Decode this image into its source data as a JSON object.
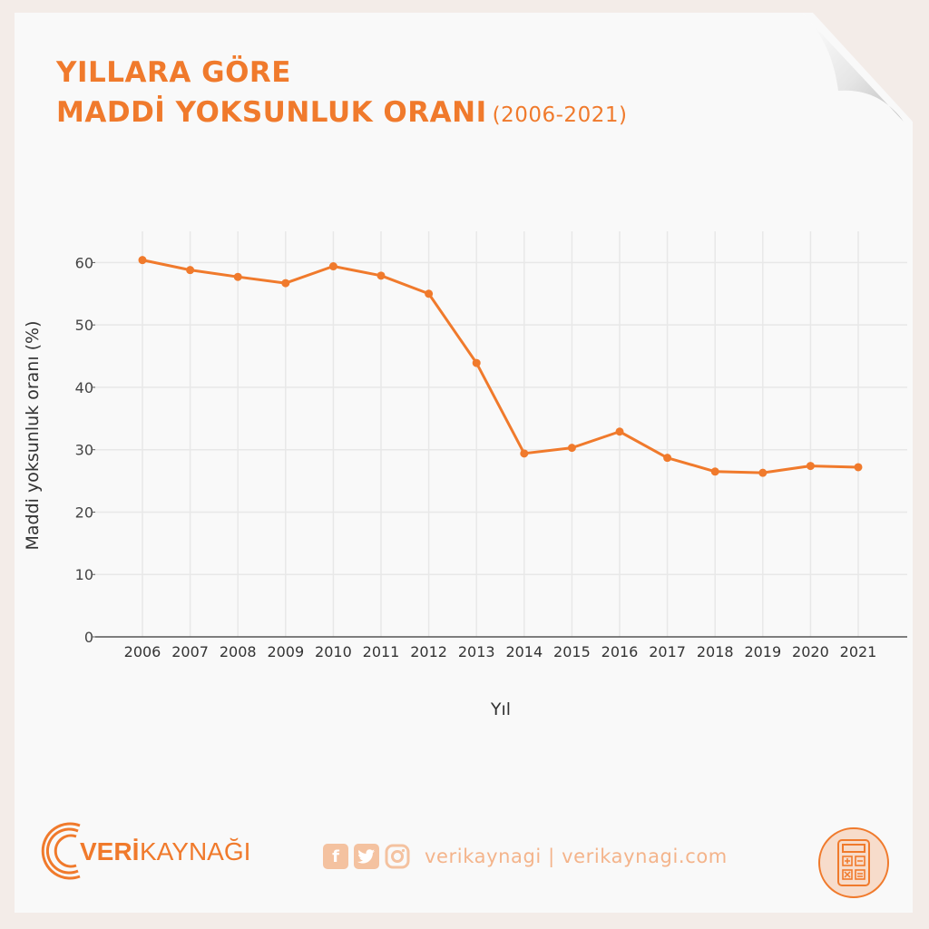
{
  "title": {
    "line1": "YILLARA GÖRE",
    "line2": "MADDİ YOKSUNLUK ORANI",
    "subtitle": "(2006-2021)"
  },
  "colors": {
    "accent": "#f07a2c",
    "grid": "#e8e8e8",
    "axis": "#555555",
    "soft_accent": "#f4c2a0"
  },
  "chart_data": {
    "type": "line",
    "x": [
      "2006",
      "2007",
      "2008",
      "2009",
      "2010",
      "2011",
      "2012",
      "2013",
      "2014",
      "2015",
      "2016",
      "2017",
      "2018",
      "2019",
      "2020",
      "2021"
    ],
    "series": [
      {
        "values": [
          60.4,
          58.8,
          57.7,
          56.7,
          59.4,
          57.9,
          55.0,
          43.9,
          29.4,
          30.3,
          32.9,
          28.7,
          26.5,
          26.3,
          27.4,
          27.2
        ]
      }
    ],
    "ylim": [
      0,
      65
    ],
    "yticks": [
      0,
      10,
      20,
      30,
      40,
      50,
      60
    ],
    "xlabel": "Yıl",
    "ylabel": "Maddi yoksunluk oranı (%)",
    "grid": true,
    "markers": true
  },
  "footer": {
    "logo_part1": "VERİ",
    "logo_part2": "KAYNAĞI",
    "social_icons": [
      "facebook-icon",
      "twitter-icon",
      "instagram-icon"
    ],
    "social_text": "verikaynagi | verikaynagi.com",
    "calculator_icon": "calculator-icon"
  }
}
